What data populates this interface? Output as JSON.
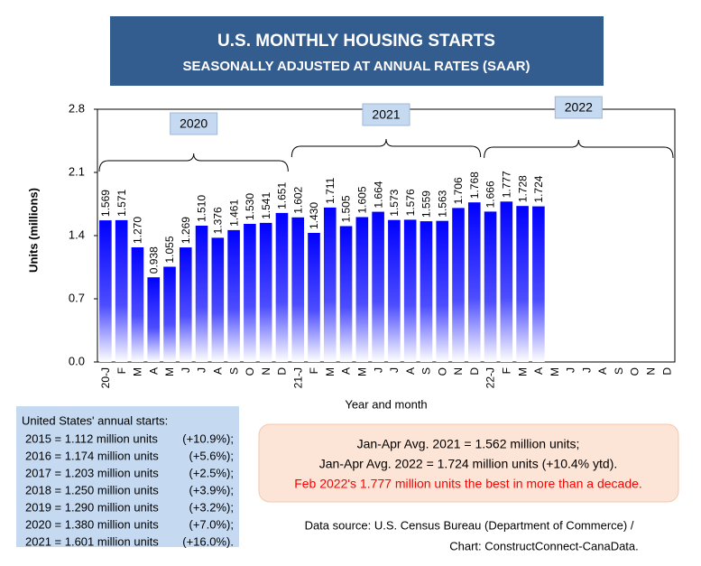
{
  "chart_data": {
    "type": "bar",
    "title": "U.S. MONTHLY HOUSING STARTS",
    "subtitle": "SEASONALLY ADJUSTED AT ANNUAL RATES (SAAR)",
    "y_label": "Units (millions)",
    "x_label": "Year and month",
    "year_labels": [
      "2020",
      "2021",
      "2022"
    ],
    "categories": [
      "20-J",
      "F",
      "M",
      "A",
      "M",
      "J",
      "J",
      "A",
      "S",
      "O",
      "N",
      "D",
      "21-J",
      "F",
      "M",
      "A",
      "M",
      "J",
      "J",
      "A",
      "S",
      "O",
      "N",
      "D",
      "22-J",
      "F",
      "M",
      "A",
      "M",
      "J",
      "J",
      "A",
      "S",
      "O",
      "N",
      "D"
    ],
    "values": [
      1.569,
      1.571,
      1.27,
      0.938,
      1.055,
      1.269,
      1.51,
      1.376,
      1.461,
      1.53,
      1.541,
      1.651,
      1.602,
      1.43,
      1.711,
      1.505,
      1.605,
      1.664,
      1.573,
      1.576,
      1.559,
      1.563,
      1.706,
      1.768,
      1.666,
      1.777,
      1.728,
      1.724,
      null,
      null,
      null,
      null,
      null,
      null,
      null,
      null
    ],
    "value_labels": [
      "1.569",
      "1.571",
      "1.270",
      "0.938",
      "1.055",
      "1.269",
      "1.510",
      "1.376",
      "1.461",
      "1.530",
      "1.541",
      "1.651",
      "1.602",
      "1.430",
      "1.711",
      "1.505",
      "1.605",
      "1.664",
      "1.573",
      "1.576",
      "1.559",
      "1.563",
      "1.706",
      "1.768",
      "1.666",
      "1.777",
      "1.728",
      "1.724",
      null,
      null,
      null,
      null,
      null,
      null,
      null,
      null
    ],
    "color": "#0000ff",
    "ylim": [
      0,
      2.8
    ],
    "yticks": [
      {
        "value": 0,
        "label": "0.0"
      },
      0.7,
      1.4,
      2.1,
      {
        "value": 2.8,
        "label": "2.8"
      }
    ],
    "grid": false
  },
  "annual_starts": {
    "title": "United States' annual starts:",
    "rows": [
      [
        "2015 = 1.112 million units",
        "(+10.9%);"
      ],
      [
        "2016 = 1.174 million units",
        "(+5.6%);"
      ],
      [
        "2017 = 1.203 million units",
        "(+2.5%);"
      ],
      [
        "2018 = 1.250 million units",
        "(+3.9%);"
      ],
      [
        "2019 = 1.290 million units",
        "(+3.2%);"
      ],
      [
        "2020 = 1.380 million units",
        "(+7.0%);"
      ],
      [
        "2021 = 1.601 million units",
        "(+16.0%)."
      ]
    ]
  },
  "summary": {
    "lines": [
      "Jan-Apr Avg. 2021 = 1.562 million units;",
      "Jan-Apr Avg. 2022 = 1.724 million units (+10.4% ytd)."
    ],
    "highlight": "Feb 2022's 1.777 million units the best in more than a decade."
  },
  "source": [
    "Data source: U.S. Census Bureau (Department of Commerce) /",
    "Chart: ConstructConnect-CanaData."
  ]
}
